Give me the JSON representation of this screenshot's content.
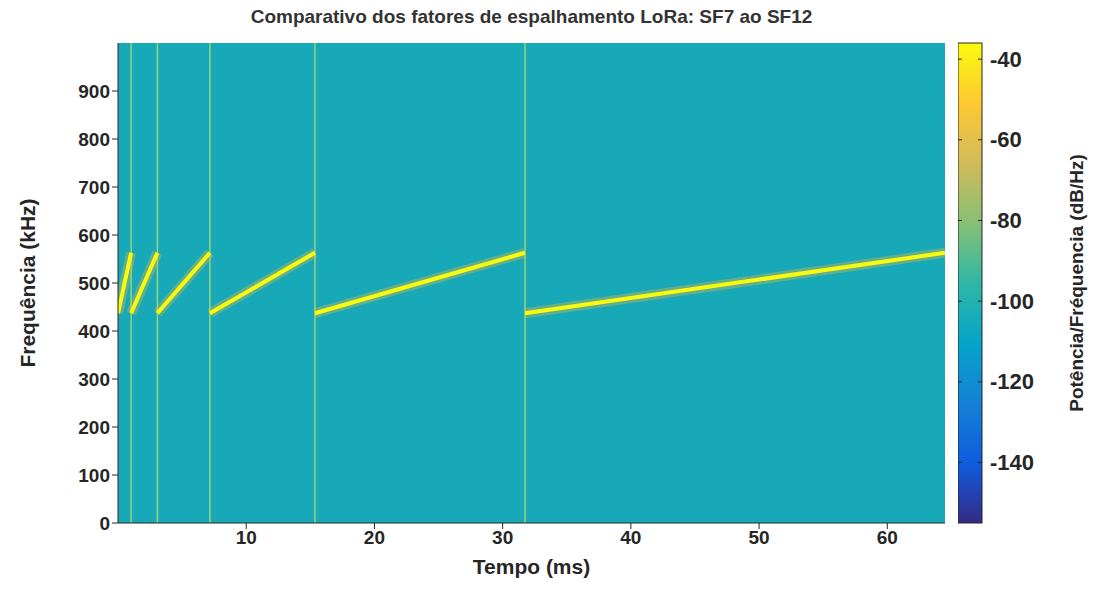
{
  "chart_data": {
    "type": "line",
    "title": "Comparativo dos fatores de espalhamento LoRa: SF7 ao SF12",
    "x_label": "Tempo (ms)",
    "y_label": "Frequência (kHz)",
    "xlim": [
      0,
      64.5
    ],
    "xticks": [
      10,
      20,
      30,
      40,
      50,
      60
    ],
    "ylim": [
      0,
      1000
    ],
    "yticks": [
      0,
      100,
      200,
      300,
      400,
      500,
      600,
      700,
      800,
      900
    ],
    "grid": false,
    "color": "#f9fb0e",
    "series": [
      {
        "x": [
          0,
          1.024
        ],
        "values": [
          437,
          563
        ]
      },
      {
        "x": [
          1.024,
          3.072
        ],
        "values": [
          437,
          563
        ]
      },
      {
        "x": [
          3.072,
          7.168
        ],
        "values": [
          437,
          563
        ]
      },
      {
        "x": [
          7.168,
          15.36
        ],
        "values": [
          437,
          563
        ]
      },
      {
        "x": [
          15.36,
          31.744
        ],
        "values": [
          437,
          563
        ]
      },
      {
        "x": [
          31.744,
          64.5
        ],
        "values": [
          437,
          563
        ]
      }
    ],
    "colorbar": {
      "range": [
        -155,
        -36
      ],
      "ticks": [
        -140,
        -120,
        -100,
        -80,
        -60,
        -40
      ],
      "label": "Potência/Fréquencia (dB/Hz)"
    }
  }
}
